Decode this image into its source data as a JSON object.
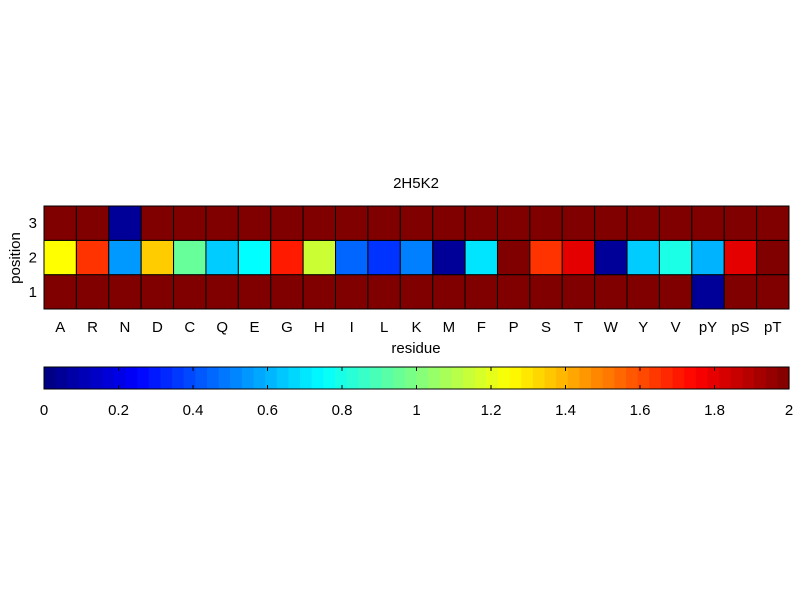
{
  "chart_data": {
    "type": "heatmap",
    "title": "2H5K2",
    "xlabel": "residue",
    "ylabel": "position",
    "x_categories": [
      "A",
      "R",
      "N",
      "D",
      "C",
      "Q",
      "E",
      "G",
      "H",
      "I",
      "L",
      "K",
      "M",
      "F",
      "P",
      "S",
      "T",
      "W",
      "Y",
      "V",
      "pY",
      "pS",
      "pT"
    ],
    "y_categories": [
      "1",
      "2",
      "3"
    ],
    "values": [
      [
        2,
        2,
        2,
        2,
        2,
        2,
        2,
        2,
        2,
        2,
        2,
        2,
        2,
        2,
        2,
        2,
        2,
        2,
        2,
        2,
        0.05,
        2,
        2
      ],
      [
        1.25,
        1.65,
        0.55,
        1.35,
        0.95,
        0.65,
        0.75,
        1.7,
        1.15,
        0.45,
        0.35,
        0.5,
        0.05,
        0.7,
        2,
        1.65,
        1.8,
        0.05,
        0.65,
        0.8,
        0.6,
        1.8,
        2
      ],
      [
        2,
        2,
        0.05,
        2,
        2,
        2,
        2,
        2,
        2,
        2,
        2,
        2,
        2,
        2,
        2,
        2,
        2,
        2,
        2,
        2,
        2,
        2,
        2
      ]
    ],
    "colormap": "jet",
    "clim": [
      0,
      2
    ],
    "colorbar": {
      "orientation": "horizontal",
      "ticks": [
        0,
        0.2,
        0.4,
        0.6,
        0.8,
        1,
        1.2,
        1.4,
        1.6,
        1.8,
        2
      ],
      "tick_labels": [
        "0",
        "0.2",
        "0.4",
        "0.6",
        "0.8",
        "1",
        "1.2",
        "1.4",
        "1.6",
        "1.8",
        "2"
      ]
    }
  }
}
